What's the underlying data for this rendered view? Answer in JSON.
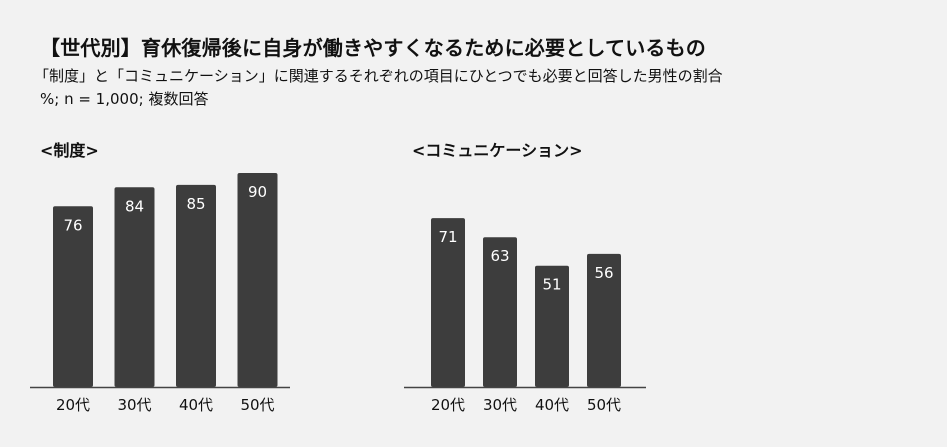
{
  "title": "【世代別】育休復帰後に自身が働きやすくなるために必要としているもの",
  "subtitle": "「制度」と「コミュニケーション」に関連するそれぞれの項目にひとつでも必要と回答した男性の割合",
  "note": "%; n = 1,000; 複数回答",
  "colors": {
    "bar": "#3d3d3d",
    "bar_label": "#ffffff",
    "axis": "#444444",
    "background": "#f2f2f2"
  },
  "chart_data": [
    {
      "type": "bar",
      "title": "<制度>",
      "categories": [
        "20代",
        "30代",
        "40代",
        "50代"
      ],
      "values": [
        76,
        84,
        85,
        90
      ],
      "value_labels": [
        "76",
        "84",
        "85",
        "90"
      ],
      "ylim": [
        0,
        90
      ],
      "grid": false,
      "legend": "none"
    },
    {
      "type": "bar",
      "title": "<コミュニケーション>",
      "categories": [
        "20代",
        "30代",
        "40代",
        "50代"
      ],
      "values": [
        71,
        63,
        51,
        56
      ],
      "value_labels": [
        "71",
        "63",
        "51",
        "56"
      ],
      "ylim": [
        0,
        90
      ],
      "grid": false,
      "legend": "none"
    }
  ]
}
